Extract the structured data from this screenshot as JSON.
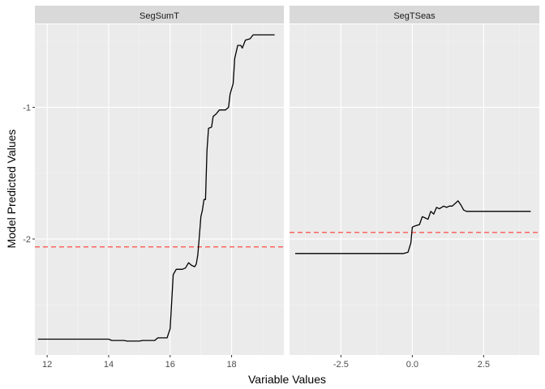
{
  "chart_data": {
    "type": "line",
    "xlabel": "Variable Values",
    "ylabel": "Model Predicted Values",
    "ylim": [
      -2.88,
      -0.37
    ],
    "y_ticks": [
      -1,
      -2
    ],
    "y_tick_labels": [
      "-1",
      "-2"
    ],
    "grid": true,
    "legend": "none",
    "colors": {
      "panel_bg": "#ebebeb",
      "strip_bg": "#d9d9d9",
      "grid_major": "#ffffff",
      "line": "#000000",
      "reference": "#ff3b30"
    },
    "panels": [
      {
        "strip": "SegSumT",
        "xlim": [
          11.6,
          19.7
        ],
        "x_ticks": [
          12,
          14,
          16,
          18
        ],
        "x_tick_labels": [
          "12",
          "14",
          "16",
          "18"
        ],
        "reference_y": -2.06,
        "points": [
          [
            11.7,
            -2.76
          ],
          [
            12.5,
            -2.76
          ],
          [
            13.5,
            -2.76
          ],
          [
            14.0,
            -2.76
          ],
          [
            14.1,
            -2.77
          ],
          [
            14.5,
            -2.77
          ],
          [
            14.6,
            -2.775
          ],
          [
            15.0,
            -2.775
          ],
          [
            15.1,
            -2.77
          ],
          [
            15.5,
            -2.77
          ],
          [
            15.6,
            -2.75
          ],
          [
            15.9,
            -2.75
          ],
          [
            16.0,
            -2.68
          ],
          [
            16.1,
            -2.27
          ],
          [
            16.2,
            -2.23
          ],
          [
            16.4,
            -2.23
          ],
          [
            16.5,
            -2.22
          ],
          [
            16.6,
            -2.18
          ],
          [
            16.7,
            -2.2
          ],
          [
            16.8,
            -2.21
          ],
          [
            16.85,
            -2.19
          ],
          [
            16.9,
            -2.12
          ],
          [
            16.95,
            -1.98
          ],
          [
            17.0,
            -1.83
          ],
          [
            17.05,
            -1.78
          ],
          [
            17.1,
            -1.7
          ],
          [
            17.15,
            -1.7
          ],
          [
            17.2,
            -1.33
          ],
          [
            17.25,
            -1.16
          ],
          [
            17.35,
            -1.15
          ],
          [
            17.4,
            -1.07
          ],
          [
            17.5,
            -1.05
          ],
          [
            17.6,
            -1.02
          ],
          [
            17.8,
            -1.02
          ],
          [
            17.9,
            -1.0
          ],
          [
            17.95,
            -0.9
          ],
          [
            18.05,
            -0.82
          ],
          [
            18.1,
            -0.63
          ],
          [
            18.2,
            -0.53
          ],
          [
            18.3,
            -0.53
          ],
          [
            18.35,
            -0.55
          ],
          [
            18.45,
            -0.49
          ],
          [
            18.6,
            -0.48
          ],
          [
            18.7,
            -0.45
          ],
          [
            19.0,
            -0.45
          ],
          [
            19.4,
            -0.45
          ]
        ]
      },
      {
        "strip": "SegTSeas",
        "xlim": [
          -4.3,
          4.45
        ],
        "x_ticks": [
          -2.5,
          0.0,
          2.5
        ],
        "x_tick_labels": [
          "-2.5",
          "0.0",
          "2.5"
        ],
        "reference_y": -1.95,
        "points": [
          [
            -4.1,
            -2.11
          ],
          [
            -3.0,
            -2.11
          ],
          [
            -2.0,
            -2.11
          ],
          [
            -1.0,
            -2.11
          ],
          [
            -0.3,
            -2.11
          ],
          [
            -0.15,
            -2.1
          ],
          [
            -0.05,
            -2.03
          ],
          [
            0.0,
            -1.91
          ],
          [
            0.1,
            -1.9
          ],
          [
            0.25,
            -1.89
          ],
          [
            0.35,
            -1.83
          ],
          [
            0.45,
            -1.84
          ],
          [
            0.55,
            -1.85
          ],
          [
            0.65,
            -1.79
          ],
          [
            0.75,
            -1.81
          ],
          [
            0.85,
            -1.76
          ],
          [
            0.95,
            -1.77
          ],
          [
            1.1,
            -1.75
          ],
          [
            1.2,
            -1.76
          ],
          [
            1.3,
            -1.75
          ],
          [
            1.4,
            -1.75
          ],
          [
            1.5,
            -1.73
          ],
          [
            1.6,
            -1.71
          ],
          [
            1.7,
            -1.74
          ],
          [
            1.8,
            -1.78
          ],
          [
            1.9,
            -1.79
          ],
          [
            2.5,
            -1.79
          ],
          [
            3.0,
            -1.79
          ],
          [
            3.5,
            -1.79
          ],
          [
            4.0,
            -1.79
          ],
          [
            4.15,
            -1.79
          ]
        ]
      }
    ]
  }
}
